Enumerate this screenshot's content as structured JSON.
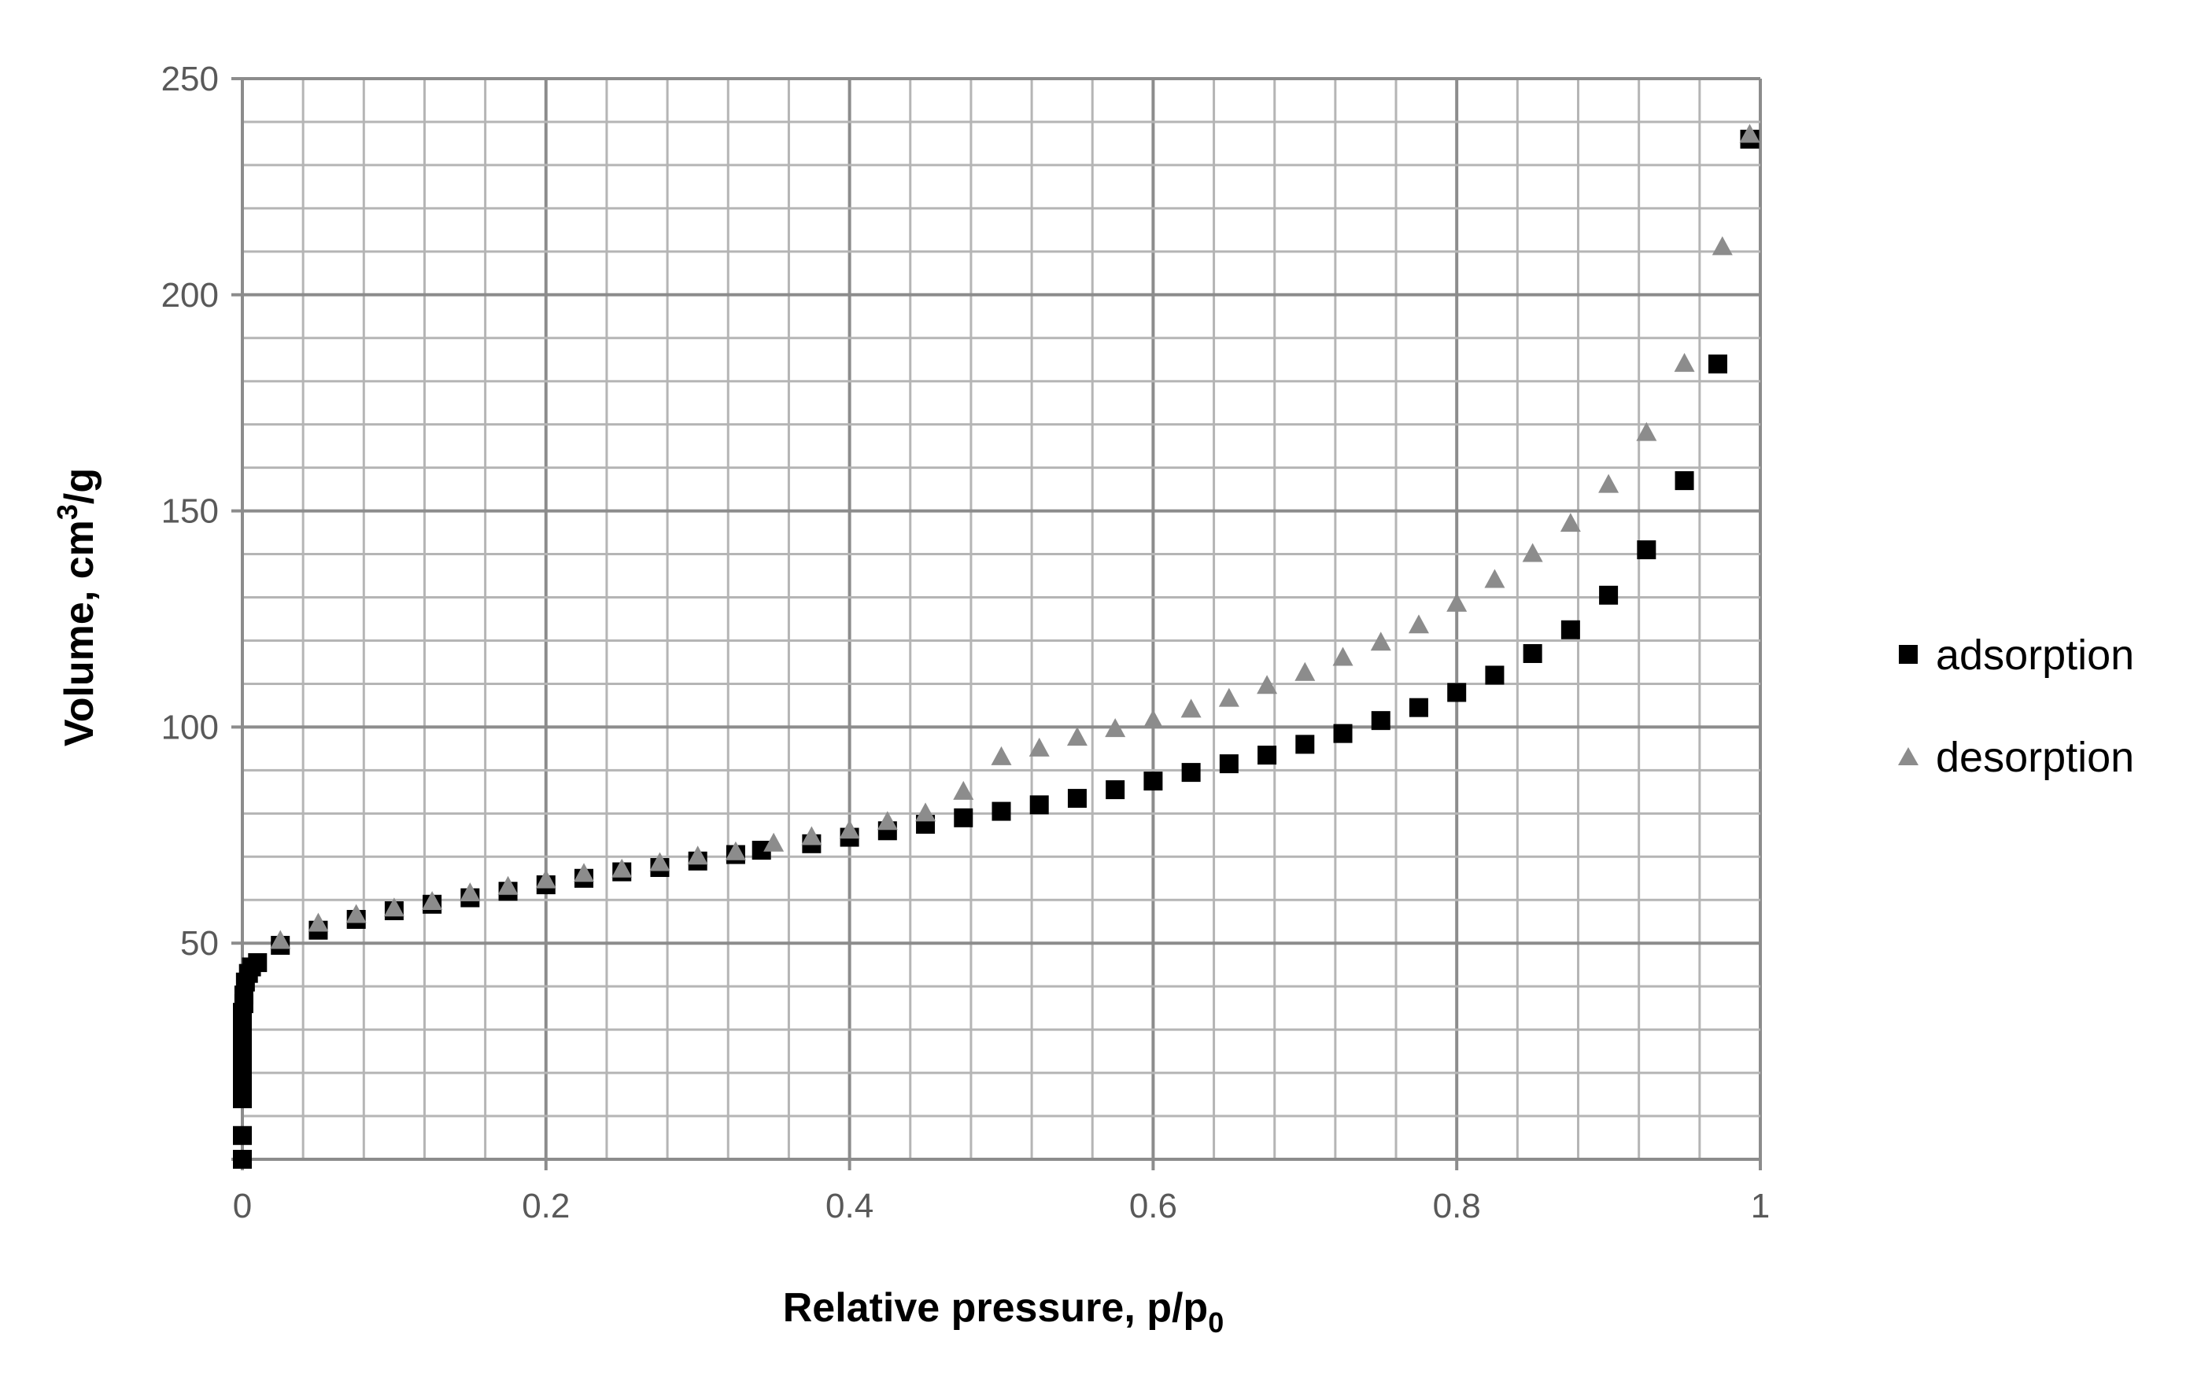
{
  "colors": {
    "background": "#ffffff",
    "grid_major": "#8c8c8c",
    "grid_minor": "#b5b5b5",
    "adsorption": "#000000",
    "desorption": "#8c8c8c"
  },
  "chart_data": {
    "type": "scatter",
    "title": "",
    "xlabel": "Relative pressure, p/p",
    "xlabel_subscript": "0",
    "ylabel": "Volume, cm",
    "ylabel_superscript": "3",
    "ylabel_suffix": "/g",
    "xlim": [
      0,
      1
    ],
    "ylim": [
      0,
      250
    ],
    "x_major_step": 0.2,
    "x_minor_step": 0.04,
    "y_major_step": 50,
    "y_minor_step": 10,
    "x_ticks": [
      {
        "value": 0,
        "label": "0"
      },
      {
        "value": 0.2,
        "label": "0.2"
      },
      {
        "value": 0.4,
        "label": "0.4"
      },
      {
        "value": 0.6,
        "label": "0.6"
      },
      {
        "value": 0.8,
        "label": "0.8"
      },
      {
        "value": 1,
        "label": "1"
      }
    ],
    "y_ticks": [
      {
        "value": 50,
        "label": "50"
      },
      {
        "value": 100,
        "label": "100"
      },
      {
        "value": 150,
        "label": "150"
      },
      {
        "value": 200,
        "label": "200"
      },
      {
        "value": 250,
        "label": "250"
      }
    ],
    "grid": true,
    "legend_position": "right",
    "series": [
      {
        "name": "adsorption",
        "marker": "square",
        "points": [
          [
            0.0,
            0
          ],
          [
            0.0,
            5.5
          ],
          [
            0.0,
            14
          ],
          [
            0.0,
            16
          ],
          [
            0.0,
            18
          ],
          [
            0.0,
            20
          ],
          [
            0.0,
            22
          ],
          [
            0.0,
            24
          ],
          [
            0.0,
            26
          ],
          [
            0.0,
            28
          ],
          [
            0.0,
            30
          ],
          [
            0.0,
            32
          ],
          [
            0.0,
            34
          ],
          [
            0.001,
            36
          ],
          [
            0.001,
            38
          ],
          [
            0.002,
            41
          ],
          [
            0.004,
            43
          ],
          [
            0.006,
            44.5
          ],
          [
            0.01,
            45.5
          ],
          [
            0.025,
            49.5
          ],
          [
            0.05,
            53
          ],
          [
            0.075,
            55.5
          ],
          [
            0.1,
            57.5
          ],
          [
            0.125,
            59
          ],
          [
            0.15,
            60.5
          ],
          [
            0.175,
            62
          ],
          [
            0.2,
            63.5
          ],
          [
            0.225,
            65
          ],
          [
            0.25,
            66.5
          ],
          [
            0.275,
            67.5
          ],
          [
            0.3,
            69
          ],
          [
            0.325,
            70.5
          ],
          [
            0.342,
            71.5
          ],
          [
            0.375,
            73
          ],
          [
            0.4,
            74.5
          ],
          [
            0.425,
            76
          ],
          [
            0.45,
            77.5
          ],
          [
            0.475,
            79
          ],
          [
            0.5,
            80.5
          ],
          [
            0.525,
            82
          ],
          [
            0.55,
            83.5
          ],
          [
            0.575,
            85.5
          ],
          [
            0.6,
            87.5
          ],
          [
            0.625,
            89.5
          ],
          [
            0.65,
            91.5
          ],
          [
            0.675,
            93.5
          ],
          [
            0.7,
            96
          ],
          [
            0.725,
            98.5
          ],
          [
            0.75,
            101.5
          ],
          [
            0.775,
            104.5
          ],
          [
            0.8,
            108
          ],
          [
            0.825,
            112
          ],
          [
            0.85,
            117
          ],
          [
            0.875,
            122.5
          ],
          [
            0.9,
            130.5
          ],
          [
            0.925,
            141
          ],
          [
            0.95,
            157
          ],
          [
            0.972,
            184
          ],
          [
            0.993,
            236
          ]
        ]
      },
      {
        "name": "desorption",
        "marker": "triangle",
        "points": [
          [
            0.993,
            237
          ],
          [
            0.975,
            211
          ],
          [
            0.95,
            184
          ],
          [
            0.925,
            168
          ],
          [
            0.9,
            156
          ],
          [
            0.875,
            147
          ],
          [
            0.85,
            140
          ],
          [
            0.825,
            134
          ],
          [
            0.8,
            128.5
          ],
          [
            0.775,
            123.5
          ],
          [
            0.75,
            119.5
          ],
          [
            0.725,
            116
          ],
          [
            0.7,
            112.5
          ],
          [
            0.675,
            109.5
          ],
          [
            0.65,
            106.5
          ],
          [
            0.625,
            104
          ],
          [
            0.6,
            101.5
          ],
          [
            0.575,
            99.5
          ],
          [
            0.55,
            97.5
          ],
          [
            0.525,
            95
          ],
          [
            0.5,
            93
          ],
          [
            0.475,
            85
          ],
          [
            0.45,
            80
          ],
          [
            0.425,
            78
          ],
          [
            0.4,
            76
          ],
          [
            0.375,
            74.5
          ],
          [
            0.35,
            73
          ],
          [
            0.325,
            71
          ],
          [
            0.3,
            70
          ],
          [
            0.275,
            68.5
          ],
          [
            0.25,
            67
          ],
          [
            0.225,
            66
          ],
          [
            0.2,
            64.5
          ],
          [
            0.175,
            63
          ],
          [
            0.15,
            61.5
          ],
          [
            0.125,
            59.5
          ],
          [
            0.1,
            58
          ],
          [
            0.075,
            56.5
          ],
          [
            0.05,
            54.5
          ],
          [
            0.025,
            50.5
          ]
        ]
      }
    ]
  }
}
